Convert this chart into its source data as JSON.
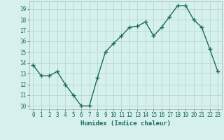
{
  "x": [
    0,
    1,
    2,
    3,
    4,
    5,
    6,
    7,
    8,
    9,
    10,
    11,
    12,
    13,
    14,
    15,
    16,
    17,
    18,
    19,
    20,
    21,
    22,
    23
  ],
  "y": [
    13.8,
    12.8,
    12.8,
    13.2,
    12.0,
    11.0,
    10.0,
    10.0,
    12.6,
    15.0,
    15.8,
    16.5,
    17.3,
    17.4,
    17.8,
    16.5,
    17.3,
    18.3,
    19.3,
    19.3,
    18.0,
    17.3,
    15.3,
    13.2
  ],
  "line_color": "#1a6b5a",
  "marker": "+",
  "background_color": "#d6f0ee",
  "grid_color": "#aed4cf",
  "xlabel": "Humidex (Indice chaleur)",
  "ylim": [
    9.7,
    19.7
  ],
  "xlim": [
    -0.5,
    23.5
  ],
  "yticks": [
    10,
    11,
    12,
    13,
    14,
    15,
    16,
    17,
    18,
    19
  ],
  "xticks": [
    0,
    1,
    2,
    3,
    4,
    5,
    6,
    7,
    8,
    9,
    10,
    11,
    12,
    13,
    14,
    15,
    16,
    17,
    18,
    19,
    20,
    21,
    22,
    23
  ],
  "tick_fontsize": 5.5,
  "xlabel_fontsize": 6.5,
  "linewidth": 1.0,
  "markersize": 4.5
}
